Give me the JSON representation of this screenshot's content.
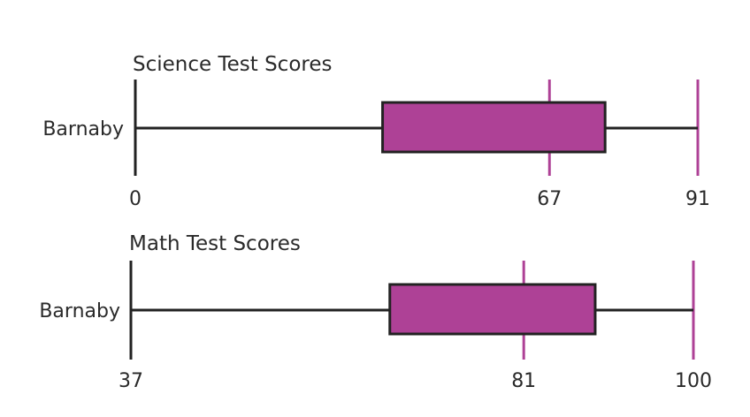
{
  "chart_data": [
    {
      "type": "boxplot",
      "title": "Science Test Scores",
      "category": "Barnaby",
      "axis_range": [
        0,
        91
      ],
      "tick_labels": [
        "0",
        "67",
        "91"
      ],
      "ticks": [
        0,
        67,
        91
      ],
      "box": {
        "min": 0,
        "q1": 40,
        "median": 67,
        "q3": 76,
        "max": 91
      },
      "colors": {
        "box_fill": "#ae4196",
        "reference_line": "#ae4196",
        "stroke": "#222222"
      }
    },
    {
      "type": "boxplot",
      "title": "Math Test Scores",
      "category": "Barnaby",
      "axis_range": [
        37,
        100
      ],
      "tick_labels": [
        "37",
        "81",
        "100"
      ],
      "ticks": [
        37,
        81,
        100
      ],
      "box": {
        "min": 37,
        "q1": 66,
        "median": 81,
        "q3": 89,
        "max": 100
      },
      "colors": {
        "box_fill": "#ae4196",
        "reference_line": "#ae4196",
        "stroke": "#222222"
      }
    }
  ]
}
